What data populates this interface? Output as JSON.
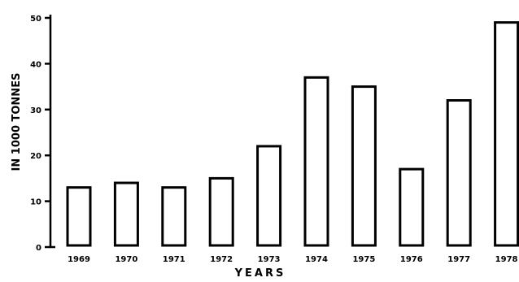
{
  "chart_data": {
    "type": "bar",
    "categories": [
      "1969",
      "1970",
      "1971",
      "1972",
      "1973",
      "1974",
      "1975",
      "1976",
      "1977",
      "1978"
    ],
    "values": [
      13,
      14,
      13,
      15,
      22,
      37,
      35,
      17,
      32,
      49
    ],
    "title": "",
    "xlabel": "YEARS",
    "ylabel": "IN 1000 TONNES",
    "ylim": [
      0,
      50
    ],
    "yticks": [
      0,
      10,
      20,
      30,
      40,
      50
    ],
    "grid": false,
    "bar_fill": "#ffffff",
    "bar_stroke": "#000000"
  }
}
